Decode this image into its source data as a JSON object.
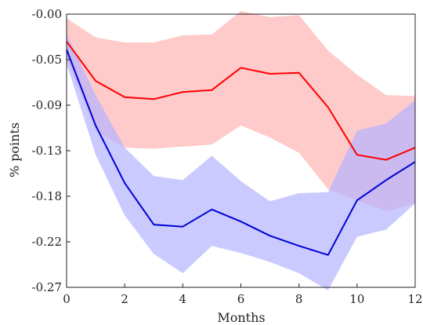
{
  "chart_data": {
    "type": "line",
    "xlabel": "Months",
    "ylabel": "% points",
    "xlim": [
      0,
      12
    ],
    "ylim": [
      -0.27,
      0.0
    ],
    "x_ticks": [
      0,
      2,
      4,
      6,
      8,
      10,
      12
    ],
    "x_tick_labels": [
      "0",
      "2",
      "4",
      "6",
      "8",
      "10",
      "12"
    ],
    "y_ticks": [
      0.0,
      -0.045,
      -0.09,
      -0.135,
      -0.18,
      -0.225,
      -0.27
    ],
    "y_tick_labels": [
      "-0.00",
      "-0.05",
      "-0.09",
      "-0.13",
      "-0.18",
      "-0.22",
      "-0.27"
    ],
    "grid": false,
    "x": [
      0,
      1,
      2,
      3,
      4,
      5,
      6,
      7,
      8,
      9,
      10,
      11,
      12
    ],
    "series": [
      {
        "color": "#ff0000",
        "band_color": "#ffb3b3",
        "values": [
          -0.027,
          -0.066,
          -0.082,
          -0.084,
          -0.077,
          -0.075,
          -0.053,
          -0.059,
          -0.058,
          -0.092,
          -0.139,
          -0.144,
          -0.132
        ],
        "lower": [
          -0.044,
          -0.115,
          -0.132,
          -0.133,
          -0.131,
          -0.129,
          -0.11,
          -0.122,
          -0.137,
          -0.173,
          -0.184,
          -0.195,
          -0.187
        ],
        "upper": [
          -0.004,
          -0.023,
          -0.028,
          -0.028,
          -0.021,
          -0.02,
          0.003,
          -0.003,
          -0.001,
          -0.036,
          -0.06,
          -0.08,
          -0.081
        ]
      },
      {
        "color": "#0000d8",
        "band_color": "#b3b3ff",
        "values": [
          -0.035,
          -0.11,
          -0.167,
          -0.208,
          -0.21,
          -0.193,
          -0.205,
          -0.219,
          -0.229,
          -0.238,
          -0.184,
          -0.164,
          -0.146
        ],
        "lower": [
          -0.049,
          -0.139,
          -0.199,
          -0.237,
          -0.256,
          -0.229,
          -0.236,
          -0.245,
          -0.256,
          -0.273,
          -0.22,
          -0.213,
          -0.187
        ],
        "upper": [
          -0.02,
          -0.08,
          -0.132,
          -0.16,
          -0.164,
          -0.14,
          -0.165,
          -0.185,
          -0.177,
          -0.176,
          -0.115,
          -0.108,
          -0.085
        ]
      }
    ]
  }
}
